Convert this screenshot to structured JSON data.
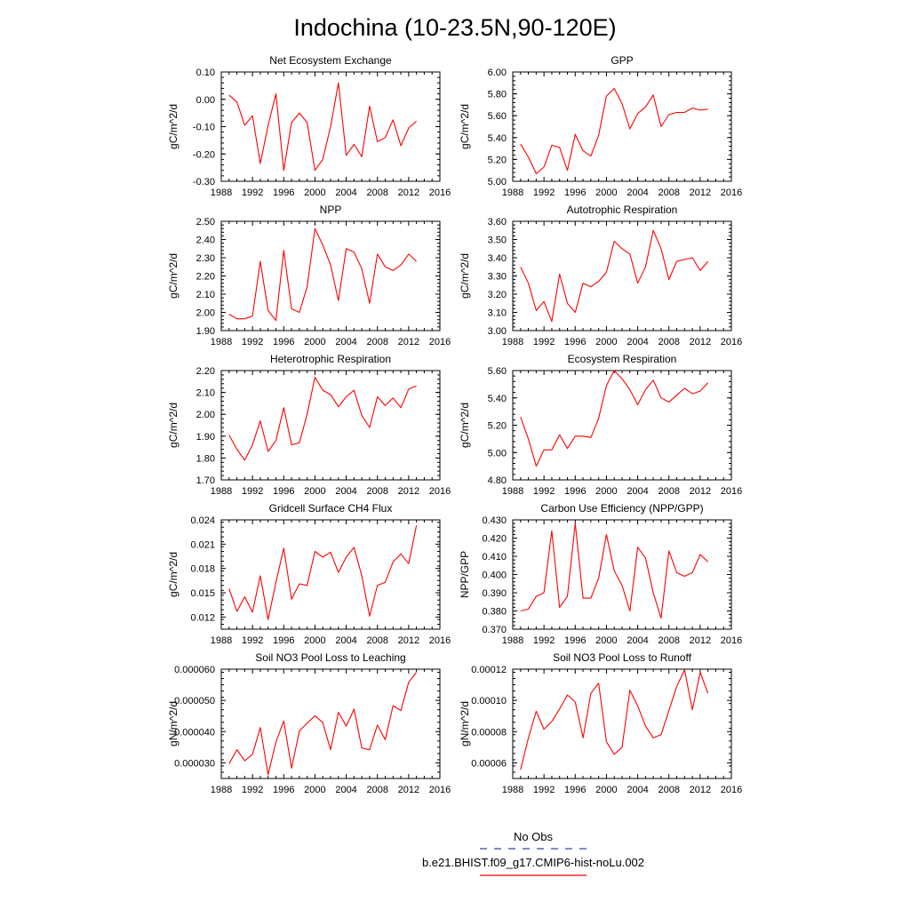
{
  "figure": {
    "title": "Indochina (10-23.5N,90-120E)",
    "legend": [
      {
        "label": "No Obs",
        "color": "#3344aa",
        "dash": true
      },
      {
        "label": "b.e21.BHIST.f09_g17.CMIP6-hist-noLu.002",
        "color": "#ff0000",
        "dash": false
      }
    ]
  },
  "chart_data": [
    {
      "type": "line",
      "title": "Net Ecosystem Exchange",
      "ylabel": "gC/m^2/d",
      "xlim": [
        1988,
        2016
      ],
      "xticks": [
        "1988",
        "1992",
        "1996",
        "2000",
        "2004",
        "2008",
        "2012",
        "2016"
      ],
      "ylim": [
        -0.3,
        0.1
      ],
      "yticks": [
        "-0.30",
        "-0.20",
        "-0.10",
        "0.00",
        "0.10"
      ],
      "series": [
        {
          "color": "#ff0000",
          "x": [
            1989,
            1990,
            1991,
            1992,
            1993,
            1994,
            1995,
            1996,
            1997,
            1998,
            1999,
            2000,
            2001,
            2002,
            2003,
            2004,
            2005,
            2006,
            2007,
            2008,
            2009,
            2010,
            2011,
            2012,
            2013
          ],
          "values": [
            0.015,
            -0.01,
            -0.095,
            -0.06,
            -0.235,
            -0.095,
            0.02,
            -0.26,
            -0.085,
            -0.05,
            -0.085,
            -0.26,
            -0.22,
            -0.1,
            0.06,
            -0.205,
            -0.165,
            -0.21,
            -0.025,
            -0.155,
            -0.14,
            -0.075,
            -0.17,
            -0.105,
            -0.08
          ]
        }
      ]
    },
    {
      "type": "line",
      "title": "GPP",
      "ylabel": "gC/m^2/d",
      "xlim": [
        1988,
        2016
      ],
      "xticks": [
        "1988",
        "1992",
        "1996",
        "2000",
        "2004",
        "2008",
        "2012",
        "2016"
      ],
      "ylim": [
        5.0,
        6.0
      ],
      "yticks": [
        "5.00",
        "5.20",
        "5.40",
        "5.60",
        "5.80",
        "6.00"
      ],
      "series": [
        {
          "color": "#ff0000",
          "x": [
            1989,
            1990,
            1991,
            1992,
            1993,
            1994,
            1995,
            1996,
            1997,
            1998,
            1999,
            2000,
            2001,
            2002,
            2003,
            2004,
            2005,
            2006,
            2007,
            2008,
            2009,
            2010,
            2011,
            2012,
            2013
          ],
          "values": [
            5.34,
            5.22,
            5.07,
            5.13,
            5.33,
            5.31,
            5.1,
            5.43,
            5.28,
            5.23,
            5.42,
            5.78,
            5.85,
            5.71,
            5.48,
            5.62,
            5.68,
            5.79,
            5.5,
            5.61,
            5.63,
            5.63,
            5.67,
            5.65,
            5.66
          ]
        }
      ]
    },
    {
      "type": "line",
      "title": "NPP",
      "ylabel": "gC/m^2/d",
      "xlim": [
        1988,
        2016
      ],
      "xticks": [
        "1988",
        "1992",
        "1996",
        "2000",
        "2004",
        "2008",
        "2012",
        "2016"
      ],
      "ylim": [
        1.9,
        2.5
      ],
      "yticks": [
        "1.90",
        "2.00",
        "2.10",
        "2.20",
        "2.30",
        "2.40",
        "2.50"
      ],
      "series": [
        {
          "color": "#ff0000",
          "x": [
            1989,
            1990,
            1991,
            1992,
            1993,
            1994,
            1995,
            1996,
            1997,
            1998,
            1999,
            2000,
            2001,
            2002,
            2003,
            2004,
            2005,
            2006,
            2007,
            2008,
            2009,
            2010,
            2011,
            2012,
            2013
          ],
          "values": [
            1.99,
            1.965,
            1.965,
            1.98,
            2.28,
            2.01,
            1.955,
            2.34,
            2.02,
            2.0,
            2.14,
            2.46,
            2.37,
            2.26,
            2.065,
            2.35,
            2.33,
            2.24,
            2.05,
            2.32,
            2.25,
            2.23,
            2.26,
            2.32,
            2.28
          ]
        }
      ]
    },
    {
      "type": "line",
      "title": "Autotrophic Respiration",
      "ylabel": "gC/m^2/d",
      "xlim": [
        1988,
        2016
      ],
      "xticks": [
        "1988",
        "1992",
        "1996",
        "2000",
        "2004",
        "2008",
        "2012",
        "2016"
      ],
      "ylim": [
        3.0,
        3.6
      ],
      "yticks": [
        "3.00",
        "3.10",
        "3.20",
        "3.30",
        "3.40",
        "3.50",
        "3.60"
      ],
      "series": [
        {
          "color": "#ff0000",
          "x": [
            1989,
            1990,
            1991,
            1992,
            1993,
            1994,
            1995,
            1996,
            1997,
            1998,
            1999,
            2000,
            2001,
            2002,
            2003,
            2004,
            2005,
            2006,
            2007,
            2008,
            2009,
            2010,
            2011,
            2012,
            2013
          ],
          "values": [
            3.35,
            3.26,
            3.11,
            3.16,
            3.05,
            3.31,
            3.15,
            3.1,
            3.26,
            3.24,
            3.27,
            3.32,
            3.49,
            3.45,
            3.42,
            3.26,
            3.35,
            3.55,
            3.45,
            3.28,
            3.38,
            3.39,
            3.4,
            3.33,
            3.38
          ]
        }
      ]
    },
    {
      "type": "line",
      "title": "Heterotrophic Respiration",
      "ylabel": "gC/m^2/d",
      "xlim": [
        1988,
        2016
      ],
      "xticks": [
        "1988",
        "1992",
        "1996",
        "2000",
        "2004",
        "2008",
        "2012",
        "2016"
      ],
      "ylim": [
        1.7,
        2.2
      ],
      "yticks": [
        "1.70",
        "1.80",
        "1.90",
        "2.00",
        "2.10",
        "2.20"
      ],
      "series": [
        {
          "color": "#ff0000",
          "x": [
            1989,
            1990,
            1991,
            1992,
            1993,
            1994,
            1995,
            1996,
            1997,
            1998,
            1999,
            2000,
            2001,
            2002,
            2003,
            2004,
            2005,
            2006,
            2007,
            2008,
            2009,
            2010,
            2011,
            2012,
            2013
          ],
          "values": [
            1.905,
            1.84,
            1.79,
            1.86,
            1.97,
            1.83,
            1.88,
            2.03,
            1.86,
            1.87,
            2.0,
            2.17,
            2.11,
            2.09,
            2.035,
            2.08,
            2.11,
            1.995,
            1.94,
            2.08,
            2.04,
            2.075,
            2.03,
            2.115,
            2.13
          ]
        }
      ]
    },
    {
      "type": "line",
      "title": "Ecosystem Respiration",
      "ylabel": "gC/m^2/d",
      "xlim": [
        1988,
        2016
      ],
      "xticks": [
        "1988",
        "1992",
        "1996",
        "2000",
        "2004",
        "2008",
        "2012",
        "2016"
      ],
      "ylim": [
        4.8,
        5.6
      ],
      "yticks": [
        "4.80",
        "5.00",
        "5.20",
        "5.40",
        "5.60"
      ],
      "series": [
        {
          "color": "#ff0000",
          "x": [
            1989,
            1990,
            1991,
            1992,
            1993,
            1994,
            1995,
            1996,
            1997,
            1998,
            1999,
            2000,
            2001,
            2002,
            2003,
            2004,
            2005,
            2006,
            2007,
            2008,
            2009,
            2010,
            2011,
            2012,
            2013
          ],
          "values": [
            5.26,
            5.1,
            4.9,
            5.02,
            5.02,
            5.13,
            5.03,
            5.12,
            5.12,
            5.11,
            5.25,
            5.49,
            5.6,
            5.54,
            5.46,
            5.35,
            5.46,
            5.53,
            5.4,
            5.37,
            5.42,
            5.47,
            5.43,
            5.45,
            5.51
          ]
        }
      ]
    },
    {
      "type": "line",
      "title": "Gridcell Surface CH4 Flux",
      "ylabel": "gC/m^2/d",
      "xlim": [
        1988,
        2016
      ],
      "xticks": [
        "1988",
        "1992",
        "1996",
        "2000",
        "2004",
        "2008",
        "2012",
        "2016"
      ],
      "ylim": [
        0.0105,
        0.024
      ],
      "yticks": [
        "0.012",
        "0.015",
        "0.018",
        "0.021",
        "0.024"
      ],
      "ytick_values": [
        0.012,
        0.015,
        0.018,
        0.021,
        0.024
      ],
      "series": [
        {
          "color": "#ff0000",
          "x": [
            1989,
            1990,
            1991,
            1992,
            1993,
            1994,
            1995,
            1996,
            1997,
            1998,
            1999,
            2000,
            2001,
            2002,
            2003,
            2004,
            2005,
            2006,
            2007,
            2008,
            2009,
            2010,
            2011,
            2012,
            2013
          ],
          "values": [
            0.0155,
            0.0127,
            0.0145,
            0.0126,
            0.0171,
            0.0117,
            0.0163,
            0.0205,
            0.0142,
            0.0161,
            0.0159,
            0.0201,
            0.0194,
            0.02,
            0.0175,
            0.0194,
            0.0206,
            0.0171,
            0.0121,
            0.0159,
            0.0163,
            0.0188,
            0.0198,
            0.0186,
            0.0233
          ]
        }
      ]
    },
    {
      "type": "line",
      "title": "Carbon Use Efficiency (NPP/GPP)",
      "ylabel": "NPP/GPP",
      "xlim": [
        1988,
        2016
      ],
      "xticks": [
        "1988",
        "1992",
        "1996",
        "2000",
        "2004",
        "2008",
        "2012",
        "2016"
      ],
      "ylim": [
        0.37,
        0.43
      ],
      "yticks": [
        "0.370",
        "0.380",
        "0.390",
        "0.400",
        "0.410",
        "0.420",
        "0.430"
      ],
      "series": [
        {
          "color": "#ff0000",
          "x": [
            1989,
            1990,
            1991,
            1992,
            1993,
            1994,
            1995,
            1996,
            1997,
            1998,
            1999,
            2000,
            2001,
            2002,
            2003,
            2004,
            2005,
            2006,
            2007,
            2008,
            2009,
            2010,
            2011,
            2012,
            2013
          ],
          "values": [
            0.38,
            0.381,
            0.388,
            0.39,
            0.424,
            0.382,
            0.388,
            0.428,
            0.387,
            0.387,
            0.398,
            0.422,
            0.402,
            0.394,
            0.38,
            0.415,
            0.409,
            0.39,
            0.376,
            0.413,
            0.401,
            0.399,
            0.401,
            0.411,
            0.407
          ]
        }
      ]
    },
    {
      "type": "line",
      "title": "Soil NO3 Pool Loss to Leaching",
      "ylabel": "gN/m^2/d",
      "xlim": [
        1988,
        2016
      ],
      "xticks": [
        "1988",
        "1992",
        "1996",
        "2000",
        "2004",
        "2008",
        "2012",
        "2016"
      ],
      "ylim": [
        2.5e-05,
        6e-05
      ],
      "yticks": [
        "0.000030",
        "0.000040",
        "0.000050",
        "0.000060"
      ],
      "ytick_values": [
        3e-05,
        4e-05,
        5e-05,
        6e-05
      ],
      "series": [
        {
          "color": "#ff0000",
          "x": [
            1989,
            1990,
            1991,
            1992,
            1993,
            1994,
            1995,
            1996,
            1997,
            1998,
            1999,
            2000,
            2001,
            2002,
            2003,
            2004,
            2005,
            2006,
            2007,
            2008,
            2009,
            2010,
            2011,
            2012,
            2013
          ],
          "values": [
            2.97e-05,
            3.42e-05,
            3.07e-05,
            3.27e-05,
            4.13e-05,
            2.62e-05,
            3.67e-05,
            4.34e-05,
            2.83e-05,
            4.02e-05,
            4.27e-05,
            4.51e-05,
            4.29e-05,
            3.42e-05,
            4.62e-05,
            4.18e-05,
            4.72e-05,
            3.48e-05,
            3.42e-05,
            4.21e-05,
            3.74e-05,
            4.83e-05,
            4.67e-05,
            5.58e-05,
            5.9e-05
          ]
        }
      ]
    },
    {
      "type": "line",
      "title": "Soil NO3 Pool Loss to Runoff",
      "ylabel": "gN/m^2/d",
      "xlim": [
        1988,
        2016
      ],
      "xticks": [
        "1988",
        "1992",
        "1996",
        "2000",
        "2004",
        "2008",
        "2012",
        "2016"
      ],
      "ylim": [
        5e-05,
        0.00012
      ],
      "yticks": [
        "0.00006",
        "0.00008",
        "0.00010",
        "0.00012"
      ],
      "ytick_values": [
        6e-05,
        8e-05,
        0.0001,
        0.00012
      ],
      "series": [
        {
          "color": "#ff0000",
          "x": [
            1989,
            1990,
            1991,
            1992,
            1993,
            1994,
            1995,
            1996,
            1997,
            1998,
            1999,
            2000,
            2001,
            2002,
            2003,
            2004,
            2005,
            2006,
            2007,
            2008,
            2009,
            2010,
            2011,
            2012,
            2013
          ],
          "values": [
            5.55e-05,
            7.6e-05,
            9.3e-05,
            8.15e-05,
            8.65e-05,
            9.45e-05,
            0.0001035,
            9.9e-05,
            7.6e-05,
            0.0001045,
            0.000111,
            7.35e-05,
            6.55e-05,
            7e-05,
            0.0001065,
            9.65e-05,
            8.35e-05,
            7.6e-05,
            7.8e-05,
            9.35e-05,
            0.000109,
            0.0001195,
            9.4e-05,
            0.000118,
            0.0001045
          ]
        }
      ]
    }
  ]
}
